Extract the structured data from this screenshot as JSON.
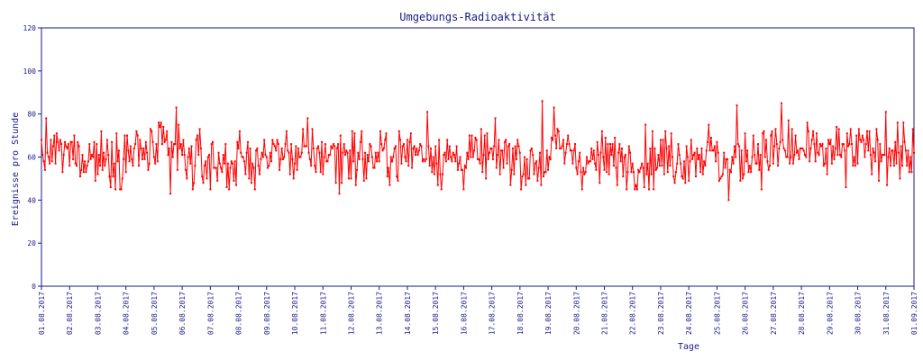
{
  "chart_data": {
    "type": "line",
    "title": "Umgebungs-Radioaktivität",
    "xlabel": "Tage",
    "ylabel": "Ereignisse pro Stunde",
    "ylim": [
      0,
      120
    ],
    "yticks": [
      "0",
      "20",
      "40",
      "60",
      "80",
      "100",
      "120"
    ],
    "xticks": [
      "01.08.2017",
      "02.08.2017",
      "03.08.2017",
      "04.08.2017",
      "05.08.2017",
      "06.08.2017",
      "07.08.2017",
      "08.08.2017",
      "09.08.2017",
      "10.08.2017",
      "11.08.2017",
      "12.08.2017",
      "13.08.2017",
      "14.08.2017",
      "15.08.2017",
      "16.08.2017",
      "17.08.2017",
      "18.08.2017",
      "19.08.2017",
      "20.08.2017",
      "21.08.2017",
      "22.08.2017",
      "23.08.2017",
      "24.08.2017",
      "25.08.2017",
      "26.08.2017",
      "27.08.2017",
      "28.08.2017",
      "29.08.2017",
      "30.08.2017",
      "31.08.2017",
      "01.09.2017"
    ],
    "x_range_days": [
      0,
      31
    ],
    "grid": false,
    "points_per_day": 24,
    "series": [
      {
        "color": "#ff0000",
        "daily_mean": [
          62,
          61,
          60,
          62,
          63,
          58,
          57,
          58,
          62,
          61,
          62,
          60,
          61,
          63,
          59,
          60,
          61,
          57,
          63,
          58,
          59,
          59,
          60,
          62,
          58,
          62,
          63,
          62,
          62,
          63,
          62
        ],
        "notable_points": [
          {
            "x": 4.6,
            "y": 43
          },
          {
            "x": 4.8,
            "y": 83
          },
          {
            "x": 10.6,
            "y": 43
          },
          {
            "x": 13.7,
            "y": 81
          },
          {
            "x": 17.8,
            "y": 86
          },
          {
            "x": 18.2,
            "y": 83
          },
          {
            "x": 24.4,
            "y": 40
          },
          {
            "x": 24.7,
            "y": 84
          },
          {
            "x": 26.3,
            "y": 85
          },
          {
            "x": 30.0,
            "y": 81
          }
        ]
      }
    ]
  },
  "colors": {
    "axis": "#1a1a8a",
    "line": "#ff0000",
    "text": "#1a1a8a"
  }
}
